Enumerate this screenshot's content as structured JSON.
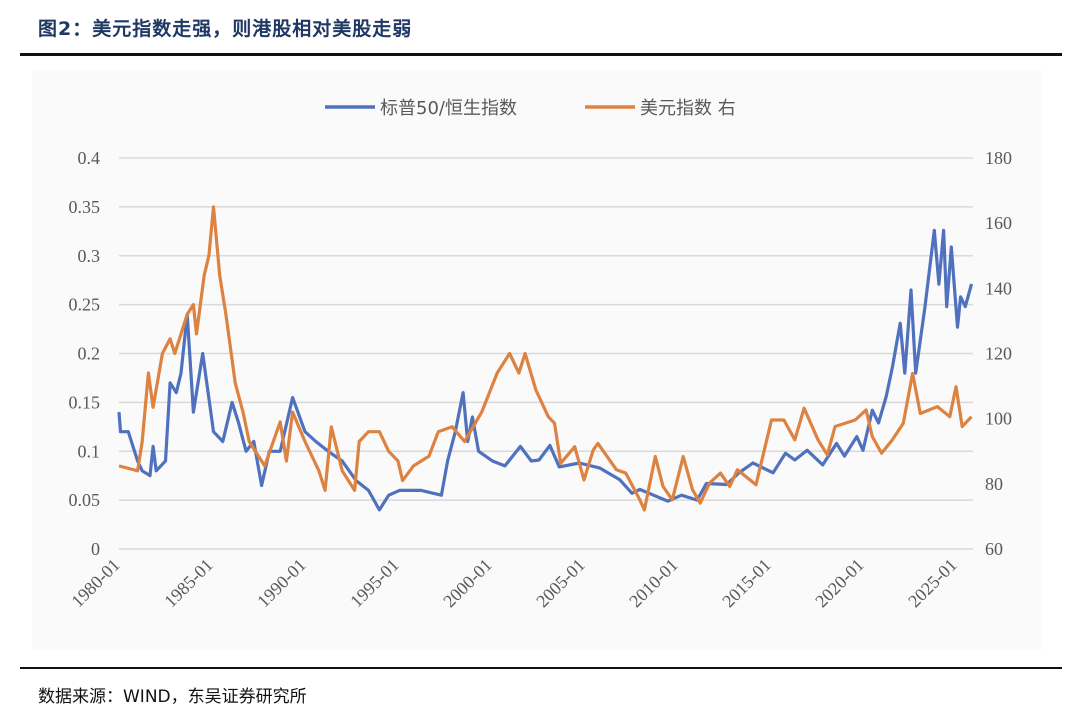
{
  "title": "图2：美元指数走强，则港股相对美股走弱",
  "source": "数据来源：WIND，东吴证券研究所",
  "chart_data": {
    "type": "line",
    "title": "",
    "legend_position": "top",
    "grid": true,
    "x_ticks": [
      "1980-01",
      "1985-01",
      "1990-01",
      "1995-01",
      "2000-01",
      "2005-01",
      "2010-01",
      "2015-01",
      "2020-01",
      "2025-01"
    ],
    "xlim": [
      "1980-01",
      "2025-12"
    ],
    "y_left": {
      "lim": [
        0,
        0.4
      ],
      "ticks": [
        "0",
        "0.05",
        "0.1",
        "0.15",
        "0.2",
        "0.25",
        "0.3",
        "0.35",
        "0.4"
      ]
    },
    "y_right": {
      "lim": [
        60,
        180
      ],
      "ticks": [
        "60",
        "80",
        "100",
        "120",
        "140",
        "160",
        "180"
      ]
    },
    "series": [
      {
        "name": "标普50/恒生指数",
        "axis": "left",
        "color": "#4f71be",
        "points": [
          [
            "1980-01",
            0.14
          ],
          [
            "1980-02",
            0.12
          ],
          [
            "1980-07",
            0.12
          ],
          [
            "1981-01",
            0.09
          ],
          [
            "1981-04",
            0.08
          ],
          [
            "1981-09",
            0.075
          ],
          [
            "1981-11",
            0.105
          ],
          [
            "1982-01",
            0.08
          ],
          [
            "1982-07",
            0.09
          ],
          [
            "1982-10",
            0.17
          ],
          [
            "1983-02",
            0.16
          ],
          [
            "1983-05",
            0.18
          ],
          [
            "1983-09",
            0.24
          ],
          [
            "1984-01",
            0.14
          ],
          [
            "1984-07",
            0.2
          ],
          [
            "1985-02",
            0.12
          ],
          [
            "1985-08",
            0.11
          ],
          [
            "1986-02",
            0.15
          ],
          [
            "1986-06",
            0.13
          ],
          [
            "1986-11",
            0.1
          ],
          [
            "1987-04",
            0.11
          ],
          [
            "1987-09",
            0.065
          ],
          [
            "1988-02",
            0.1
          ],
          [
            "1988-09",
            0.1
          ],
          [
            "1989-05",
            0.155
          ],
          [
            "1990-01",
            0.12
          ],
          [
            "1990-08",
            0.11
          ],
          [
            "1991-04",
            0.1
          ],
          [
            "1992-01",
            0.09
          ],
          [
            "1992-10",
            0.07
          ],
          [
            "1993-06",
            0.06
          ],
          [
            "1994-01",
            0.04
          ],
          [
            "1994-07",
            0.055
          ],
          [
            "1995-02",
            0.06
          ],
          [
            "1996-04",
            0.06
          ],
          [
            "1997-05",
            0.055
          ],
          [
            "1997-09",
            0.09
          ],
          [
            "1998-02",
            0.12
          ],
          [
            "1998-07",
            0.16
          ],
          [
            "1998-10",
            0.11
          ],
          [
            "1999-01",
            0.135
          ],
          [
            "1999-05",
            0.1
          ],
          [
            "2000-02",
            0.09
          ],
          [
            "2000-10",
            0.085
          ],
          [
            "2001-08",
            0.105
          ],
          [
            "2002-03",
            0.09
          ],
          [
            "2002-08",
            0.091
          ],
          [
            "2003-03",
            0.106
          ],
          [
            "2003-09",
            0.084
          ],
          [
            "2004-10",
            0.088
          ],
          [
            "2005-11",
            0.083
          ],
          [
            "2006-12",
            0.071
          ],
          [
            "2007-08",
            0.057
          ],
          [
            "2008-01",
            0.061
          ],
          [
            "2008-07",
            0.057
          ],
          [
            "2009-07",
            0.049
          ],
          [
            "2010-04",
            0.055
          ],
          [
            "2011-02",
            0.05
          ],
          [
            "2011-08",
            0.067
          ],
          [
            "2012-09",
            0.066
          ],
          [
            "2013-05",
            0.078
          ],
          [
            "2014-02",
            0.088
          ],
          [
            "2015-03",
            0.078
          ],
          [
            "2015-11",
            0.098
          ],
          [
            "2016-05",
            0.091
          ],
          [
            "2017-01",
            0.101
          ],
          [
            "2017-11",
            0.086
          ],
          [
            "2018-08",
            0.108
          ],
          [
            "2019-01",
            0.095
          ],
          [
            "2019-09",
            0.115
          ],
          [
            "2020-01",
            0.101
          ],
          [
            "2020-07",
            0.142
          ],
          [
            "2020-11",
            0.129
          ],
          [
            "2021-04",
            0.156
          ],
          [
            "2021-08",
            0.186
          ],
          [
            "2022-01",
            0.231
          ],
          [
            "2022-04",
            0.18
          ],
          [
            "2022-08",
            0.265
          ],
          [
            "2022-11",
            0.18
          ],
          [
            "2023-05",
            0.248
          ],
          [
            "2023-11",
            0.326
          ],
          [
            "2024-02",
            0.271
          ],
          [
            "2024-05",
            0.326
          ],
          [
            "2024-07",
            0.248
          ],
          [
            "2024-10",
            0.309
          ],
          [
            "2025-02",
            0.227
          ],
          [
            "2025-04",
            0.258
          ],
          [
            "2025-07",
            0.248
          ],
          [
            "2025-11",
            0.271
          ]
        ]
      },
      {
        "name": "美元指数 右",
        "axis": "right",
        "color": "#dd8240",
        "points": [
          [
            "1980-01",
            85.5
          ],
          [
            "1981-01",
            84
          ],
          [
            "1981-04",
            93
          ],
          [
            "1981-08",
            114
          ],
          [
            "1981-11",
            103.5
          ],
          [
            "1982-05",
            120
          ],
          [
            "1982-10",
            124.5
          ],
          [
            "1983-01",
            120
          ],
          [
            "1983-09",
            132
          ],
          [
            "1984-01",
            135
          ],
          [
            "1984-03",
            126
          ],
          [
            "1984-08",
            144
          ],
          [
            "1984-11",
            150
          ],
          [
            "1985-02",
            165
          ],
          [
            "1985-06",
            144
          ],
          [
            "1985-10",
            132
          ],
          [
            "1986-04",
            111
          ],
          [
            "1986-09",
            102
          ],
          [
            "1987-01",
            93
          ],
          [
            "1987-11",
            85.5
          ],
          [
            "1988-09",
            99
          ],
          [
            "1989-01",
            87
          ],
          [
            "1989-05",
            102
          ],
          [
            "1990-01",
            93
          ],
          [
            "1990-10",
            84
          ],
          [
            "1991-02",
            78
          ],
          [
            "1991-06",
            97.5
          ],
          [
            "1992-01",
            84
          ],
          [
            "1992-09",
            78
          ],
          [
            "1992-12",
            93
          ],
          [
            "1993-06",
            96
          ],
          [
            "1994-01",
            96
          ],
          [
            "1994-07",
            90
          ],
          [
            "1995-01",
            87
          ],
          [
            "1995-04",
            81
          ],
          [
            "1995-11",
            85.5
          ],
          [
            "1996-09",
            88.5
          ],
          [
            "1997-03",
            96
          ],
          [
            "1997-12",
            97.5
          ],
          [
            "1998-08",
            93
          ],
          [
            "1999-07",
            102
          ],
          [
            "2000-05",
            114
          ],
          [
            "2001-01",
            120
          ],
          [
            "2001-07",
            114
          ],
          [
            "2001-11",
            120
          ],
          [
            "2002-06",
            108.8
          ],
          [
            "2003-02",
            100.6
          ],
          [
            "2003-06",
            98.6
          ],
          [
            "2003-10",
            86.3
          ],
          [
            "2004-07",
            91.4
          ],
          [
            "2005-01",
            81.2
          ],
          [
            "2005-07",
            90.4
          ],
          [
            "2005-10",
            92.4
          ],
          [
            "2006-10",
            84.3
          ],
          [
            "2007-04",
            83.3
          ],
          [
            "2008-01",
            75.1
          ],
          [
            "2008-04",
            72
          ],
          [
            "2008-11",
            88.4
          ],
          [
            "2009-04",
            79.2
          ],
          [
            "2009-10",
            75.1
          ],
          [
            "2010-05",
            88.4
          ],
          [
            "2010-11",
            78.2
          ],
          [
            "2011-04",
            74.1
          ],
          [
            "2011-10",
            80.2
          ],
          [
            "2012-05",
            83.3
          ],
          [
            "2012-11",
            79.2
          ],
          [
            "2013-04",
            84.3
          ],
          [
            "2014-04",
            79.7
          ],
          [
            "2015-02",
            99.6
          ],
          [
            "2015-10",
            99.6
          ],
          [
            "2016-05",
            93.5
          ],
          [
            "2016-11",
            103.2
          ],
          [
            "2017-08",
            93.5
          ],
          [
            "2018-02",
            88.9
          ],
          [
            "2018-07",
            97.6
          ],
          [
            "2019-08",
            99.6
          ],
          [
            "2020-03",
            102.7
          ],
          [
            "2020-07",
            94.5
          ],
          [
            "2021-01",
            89.4
          ],
          [
            "2021-08",
            93.5
          ],
          [
            "2022-03",
            98.6
          ],
          [
            "2022-09",
            113.9
          ],
          [
            "2023-02",
            101.6
          ],
          [
            "2024-01",
            103.7
          ],
          [
            "2024-09",
            100.6
          ],
          [
            "2025-01",
            109.8
          ],
          [
            "2025-05",
            97.6
          ],
          [
            "2025-11",
            100.6
          ]
        ]
      }
    ]
  }
}
